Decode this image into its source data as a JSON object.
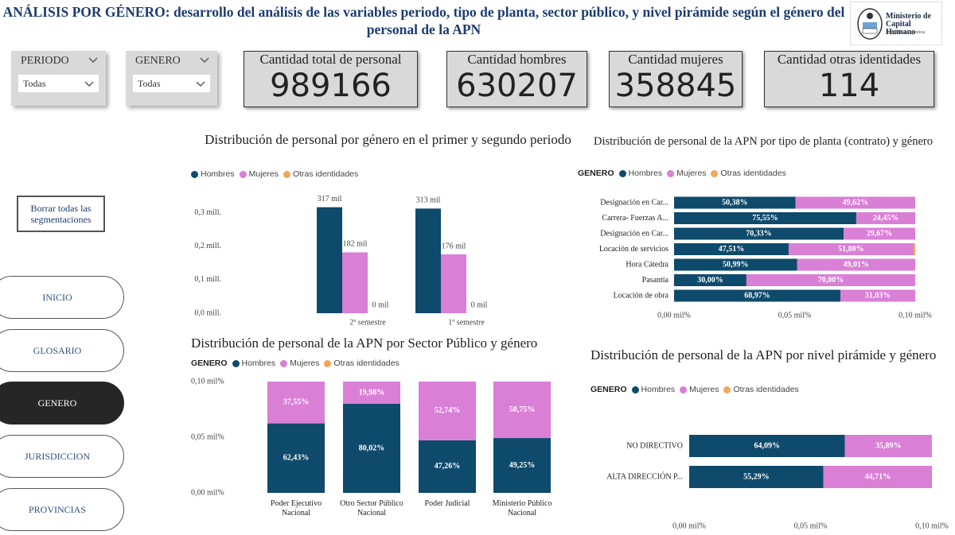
{
  "header": {
    "title_prefix": "ANÁLISIS POR GÉNERO:",
    "title_text": "desarrollo del análisis de las variables periodo, tipo de planta, sector público, y nivel pirámide según el género del personal de la APN"
  },
  "logo": {
    "line1": "Ministerio de",
    "line2": "Capital Humano",
    "line3": "República Argentina"
  },
  "filters": [
    {
      "label": "PERIODO",
      "value": "Todas"
    },
    {
      "label": "GENERO",
      "value": "Todas"
    }
  ],
  "kpis": [
    {
      "label": "Cantidad total de personal",
      "value": 989166
    },
    {
      "label": "Cantidad hombres",
      "value": 630207
    },
    {
      "label": "Cantidad mujeres",
      "value": 358845
    },
    {
      "label": "Cantidad otras identidades",
      "value": 114
    }
  ],
  "clear_button": "Borrar todas las segmentaciones",
  "nav": [
    "INICIO",
    "GLOSARIO",
    "GENERO",
    "JURISDICCION",
    "PROVINCIAS"
  ],
  "nav_active_index": 2,
  "chart_data": [
    {
      "type": "grouped_bar",
      "title": "Distribución de personal por género en el primer y segundo periodo",
      "categories": [
        "2º semestre",
        "1º semestre"
      ],
      "series": [
        {
          "name": "Hombres",
          "color": "#0e4a6b",
          "values": [
            317000,
            313000
          ],
          "value_labels": [
            "317 mil",
            "313 mil"
          ]
        },
        {
          "name": "Mujeres",
          "color": "#d97fd6",
          "values": [
            182000,
            176000
          ],
          "value_labels": [
            "182 mil",
            "176 mil"
          ]
        },
        {
          "name": "Otras identidades",
          "color": "#f2a65a",
          "values": [
            60,
            54
          ],
          "value_labels": [
            "0 mil",
            "0 mil"
          ]
        }
      ],
      "ylim": [
        0,
        340000
      ],
      "yticks": [
        {
          "value": 0,
          "label": "0,0 mill."
        },
        {
          "value": 100000,
          "label": "0,1 mill."
        },
        {
          "value": 200000,
          "label": "0,2 mill."
        },
        {
          "value": 300000,
          "label": "0,3 mill."
        }
      ]
    },
    {
      "type": "stacked_hbar",
      "title": "Distribución de personal de la APN por tipo de planta (contrato) y género",
      "legend_title": "GENERO",
      "categories": [
        "Designación en Car...",
        "Carrera- Fuerzas A...",
        "Designación en Car...",
        "Locación de servicios",
        "Hora Cátedra",
        "Pasantía",
        "Locación de obra"
      ],
      "series": [
        {
          "name": "Hombres",
          "color": "#0e4a6b",
          "values": [
            50.38,
            75.55,
            70.33,
            47.51,
            50.99,
            30.0,
            68.97
          ],
          "value_labels": [
            "50,38%",
            "75,55%",
            "70,33%",
            "47,51%",
            "50,99%",
            "30,00%",
            "68,97%"
          ]
        },
        {
          "name": "Mujeres",
          "color": "#d97fd6",
          "values": [
            49.62,
            24.45,
            29.67,
            51.8,
            49.01,
            70.0,
            31.03
          ],
          "value_labels": [
            "49,62%",
            "24,45%",
            "29,67%",
            "51,80%",
            "49,01%",
            "70,00%",
            "31,03%"
          ]
        },
        {
          "name": "Otras identidades",
          "color": "#f2a65a",
          "values": [
            0,
            0,
            0,
            0.69,
            0,
            0,
            0
          ]
        }
      ],
      "xlim": [
        0,
        100
      ],
      "xticks": [
        {
          "value": 0,
          "label": "0,00 mil%"
        },
        {
          "value": 50,
          "label": "0,05 mil%"
        },
        {
          "value": 100,
          "label": "0,10 mil%"
        }
      ]
    },
    {
      "type": "stacked_bar",
      "title": "Distribución de personal de la APN por Sector Público y género",
      "legend_title": "GENERO",
      "categories": [
        "Poder Ejecutivo Nacional",
        "Otro Sector Público Nacional",
        "Poder Judicial",
        "Ministerio Público Nacional"
      ],
      "series": [
        {
          "name": "Hombres",
          "color": "#0e4a6b",
          "values": [
            62.43,
            80.02,
            47.26,
            49.25
          ],
          "value_labels": [
            "62,43%",
            "80,02%",
            "47,26%",
            "49,25%"
          ]
        },
        {
          "name": "Mujeres",
          "color": "#d97fd6",
          "values": [
            37.55,
            19.98,
            52.74,
            50.75
          ],
          "value_labels": [
            "37,55%",
            "19,98%",
            "52,74%",
            "50,75%"
          ]
        },
        {
          "name": "Otras identidades",
          "color": "#f2a65a",
          "values": [
            0.02,
            0,
            0,
            0
          ]
        }
      ],
      "ylim": [
        0,
        100
      ],
      "yticks": [
        {
          "value": 0,
          "label": "0,00 mil%"
        },
        {
          "value": 50,
          "label": "0,05 mil%"
        },
        {
          "value": 100,
          "label": "0,10 mil%"
        }
      ]
    },
    {
      "type": "stacked_hbar",
      "title": "Distribución de personal de la APN por nivel pirámide y género",
      "legend_title": "GENERO",
      "categories": [
        "NO DIRECTIVO",
        "ALTA DIRECCIÓN P..."
      ],
      "series": [
        {
          "name": "Hombres",
          "color": "#0e4a6b",
          "values": [
            64.09,
            55.29
          ],
          "value_labels": [
            "64,09%",
            "55,29%"
          ]
        },
        {
          "name": "Mujeres",
          "color": "#d97fd6",
          "values": [
            35.89,
            44.71
          ],
          "value_labels": [
            "35,89%",
            "44,71%"
          ]
        },
        {
          "name": "Otras identidades",
          "color": "#f2a65a",
          "values": [
            0.02,
            0
          ]
        }
      ],
      "xlim": [
        0,
        100
      ],
      "xticks": [
        {
          "value": 0,
          "label": "0,00 mil%"
        },
        {
          "value": 50,
          "label": "0,05 mil%"
        },
        {
          "value": 100,
          "label": "0,10 mil%"
        }
      ]
    }
  ]
}
